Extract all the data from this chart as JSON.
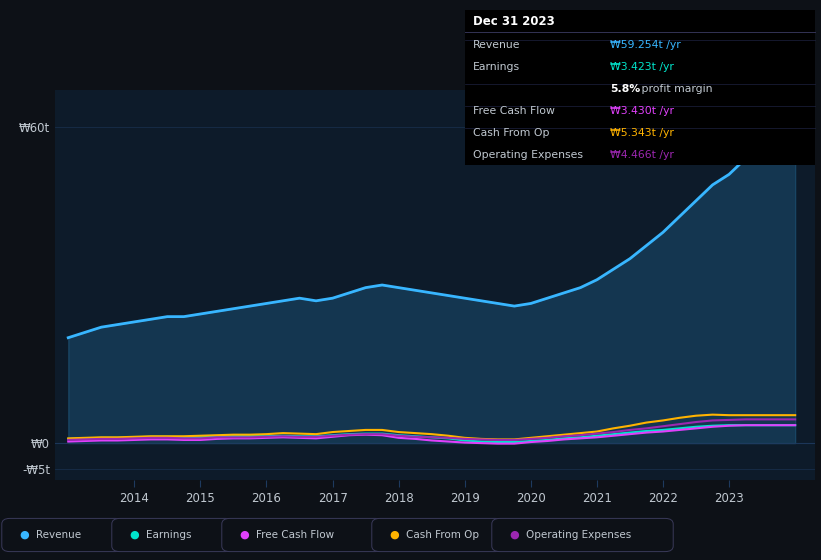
{
  "bg_color": "#0d1117",
  "plot_bg_color": "#0d1b2a",
  "grid_color": "#1e3a5f",
  "text_color": "#c0c8d0",
  "ylim_min": -7,
  "ylim_max": 67,
  "ytick_vals": [
    -5,
    0,
    60
  ],
  "ytick_labels": [
    "-₩5t",
    "₩0",
    "₩60t"
  ],
  "xlabel_years": [
    2014,
    2015,
    2016,
    2017,
    2018,
    2019,
    2020,
    2021,
    2022,
    2023
  ],
  "xlim_min": 2012.8,
  "xlim_max": 2024.3,
  "legend_items": [
    {
      "label": "Revenue",
      "color": "#38b6ff"
    },
    {
      "label": "Earnings",
      "color": "#00e5cc"
    },
    {
      "label": "Free Cash Flow",
      "color": "#e040fb"
    },
    {
      "label": "Cash From Op",
      "color": "#ffb300"
    },
    {
      "label": "Operating Expenses",
      "color": "#9c27b0"
    }
  ],
  "info_box": {
    "date": "Dec 31 2023",
    "rows": [
      {
        "label": "Revenue",
        "value": "₩59.254t /yr",
        "value_color": "#38b6ff"
      },
      {
        "label": "Earnings",
        "value": "₩3.423t /yr",
        "value_color": "#00e5cc"
      },
      {
        "label": "",
        "value": "5.8%",
        "value_color": "#ffffff",
        "suffix": " profit margin"
      },
      {
        "label": "Free Cash Flow",
        "value": "₩3.430t /yr",
        "value_color": "#e040fb"
      },
      {
        "label": "Cash From Op",
        "value": "₩5.343t /yr",
        "value_color": "#ffb300"
      },
      {
        "label": "Operating Expenses",
        "value": "₩4.466t /yr",
        "value_color": "#9c27b0"
      }
    ]
  },
  "series": {
    "x": [
      2013.0,
      2013.25,
      2013.5,
      2013.75,
      2014.0,
      2014.25,
      2014.5,
      2014.75,
      2015.0,
      2015.25,
      2015.5,
      2015.75,
      2016.0,
      2016.25,
      2016.5,
      2016.75,
      2017.0,
      2017.25,
      2017.5,
      2017.75,
      2018.0,
      2018.25,
      2018.5,
      2018.75,
      2019.0,
      2019.25,
      2019.5,
      2019.75,
      2020.0,
      2020.25,
      2020.5,
      2020.75,
      2021.0,
      2021.25,
      2021.5,
      2021.75,
      2022.0,
      2022.25,
      2022.5,
      2022.75,
      2023.0,
      2023.25,
      2023.5,
      2023.75,
      2024.0
    ],
    "revenue": [
      20.0,
      21.0,
      22.0,
      22.5,
      23.0,
      23.5,
      24.0,
      24.0,
      24.5,
      25.0,
      25.5,
      26.0,
      26.5,
      27.0,
      27.5,
      27.0,
      27.5,
      28.5,
      29.5,
      30.0,
      29.5,
      29.0,
      28.5,
      28.0,
      27.5,
      27.0,
      26.5,
      26.0,
      26.5,
      27.5,
      28.5,
      29.5,
      31.0,
      33.0,
      35.0,
      37.5,
      40.0,
      43.0,
      46.0,
      49.0,
      51.0,
      54.0,
      57.0,
      59.0,
      60.0
    ],
    "earnings": [
      0.8,
      0.9,
      1.0,
      1.0,
      1.1,
      1.2,
      1.2,
      1.1,
      1.1,
      1.2,
      1.3,
      1.3,
      1.3,
      1.4,
      1.3,
      1.3,
      1.5,
      1.7,
      1.8,
      1.8,
      1.5,
      1.3,
      1.1,
      0.9,
      0.5,
      0.3,
      0.2,
      0.2,
      0.4,
      0.6,
      0.9,
      1.1,
      1.4,
      1.7,
      2.0,
      2.3,
      2.5,
      2.8,
      3.1,
      3.3,
      3.4,
      3.4,
      3.4,
      3.4,
      3.4
    ],
    "free_cash_flow": [
      0.3,
      0.4,
      0.5,
      0.5,
      0.6,
      0.7,
      0.7,
      0.6,
      0.6,
      0.8,
      0.9,
      0.9,
      1.0,
      1.1,
      1.0,
      0.9,
      1.2,
      1.5,
      1.6,
      1.5,
      1.0,
      0.8,
      0.5,
      0.3,
      0.1,
      0.0,
      -0.1,
      -0.1,
      0.2,
      0.4,
      0.7,
      0.9,
      1.1,
      1.4,
      1.7,
      2.0,
      2.2,
      2.5,
      2.8,
      3.1,
      3.3,
      3.4,
      3.4,
      3.4,
      3.4
    ],
    "cash_from_op": [
      0.9,
      1.0,
      1.1,
      1.1,
      1.2,
      1.3,
      1.3,
      1.3,
      1.4,
      1.5,
      1.6,
      1.6,
      1.7,
      1.9,
      1.8,
      1.7,
      2.1,
      2.3,
      2.5,
      2.5,
      2.1,
      1.9,
      1.7,
      1.4,
      1.0,
      0.8,
      0.7,
      0.7,
      1.0,
      1.3,
      1.6,
      1.9,
      2.2,
      2.8,
      3.3,
      3.9,
      4.3,
      4.8,
      5.2,
      5.4,
      5.3,
      5.3,
      5.3,
      5.3,
      5.3
    ],
    "operating_expenses": [
      0.6,
      0.7,
      0.8,
      0.8,
      0.9,
      1.0,
      1.0,
      0.9,
      0.9,
      1.1,
      1.1,
      1.1,
      1.2,
      1.3,
      1.2,
      1.2,
      1.4,
      1.6,
      1.7,
      1.7,
      1.4,
      1.2,
      1.1,
      1.0,
      0.8,
      0.7,
      0.6,
      0.6,
      0.8,
      1.0,
      1.3,
      1.5,
      1.8,
      2.1,
      2.5,
      2.8,
      3.2,
      3.6,
      4.0,
      4.3,
      4.4,
      4.5,
      4.5,
      4.5,
      4.5
    ]
  }
}
